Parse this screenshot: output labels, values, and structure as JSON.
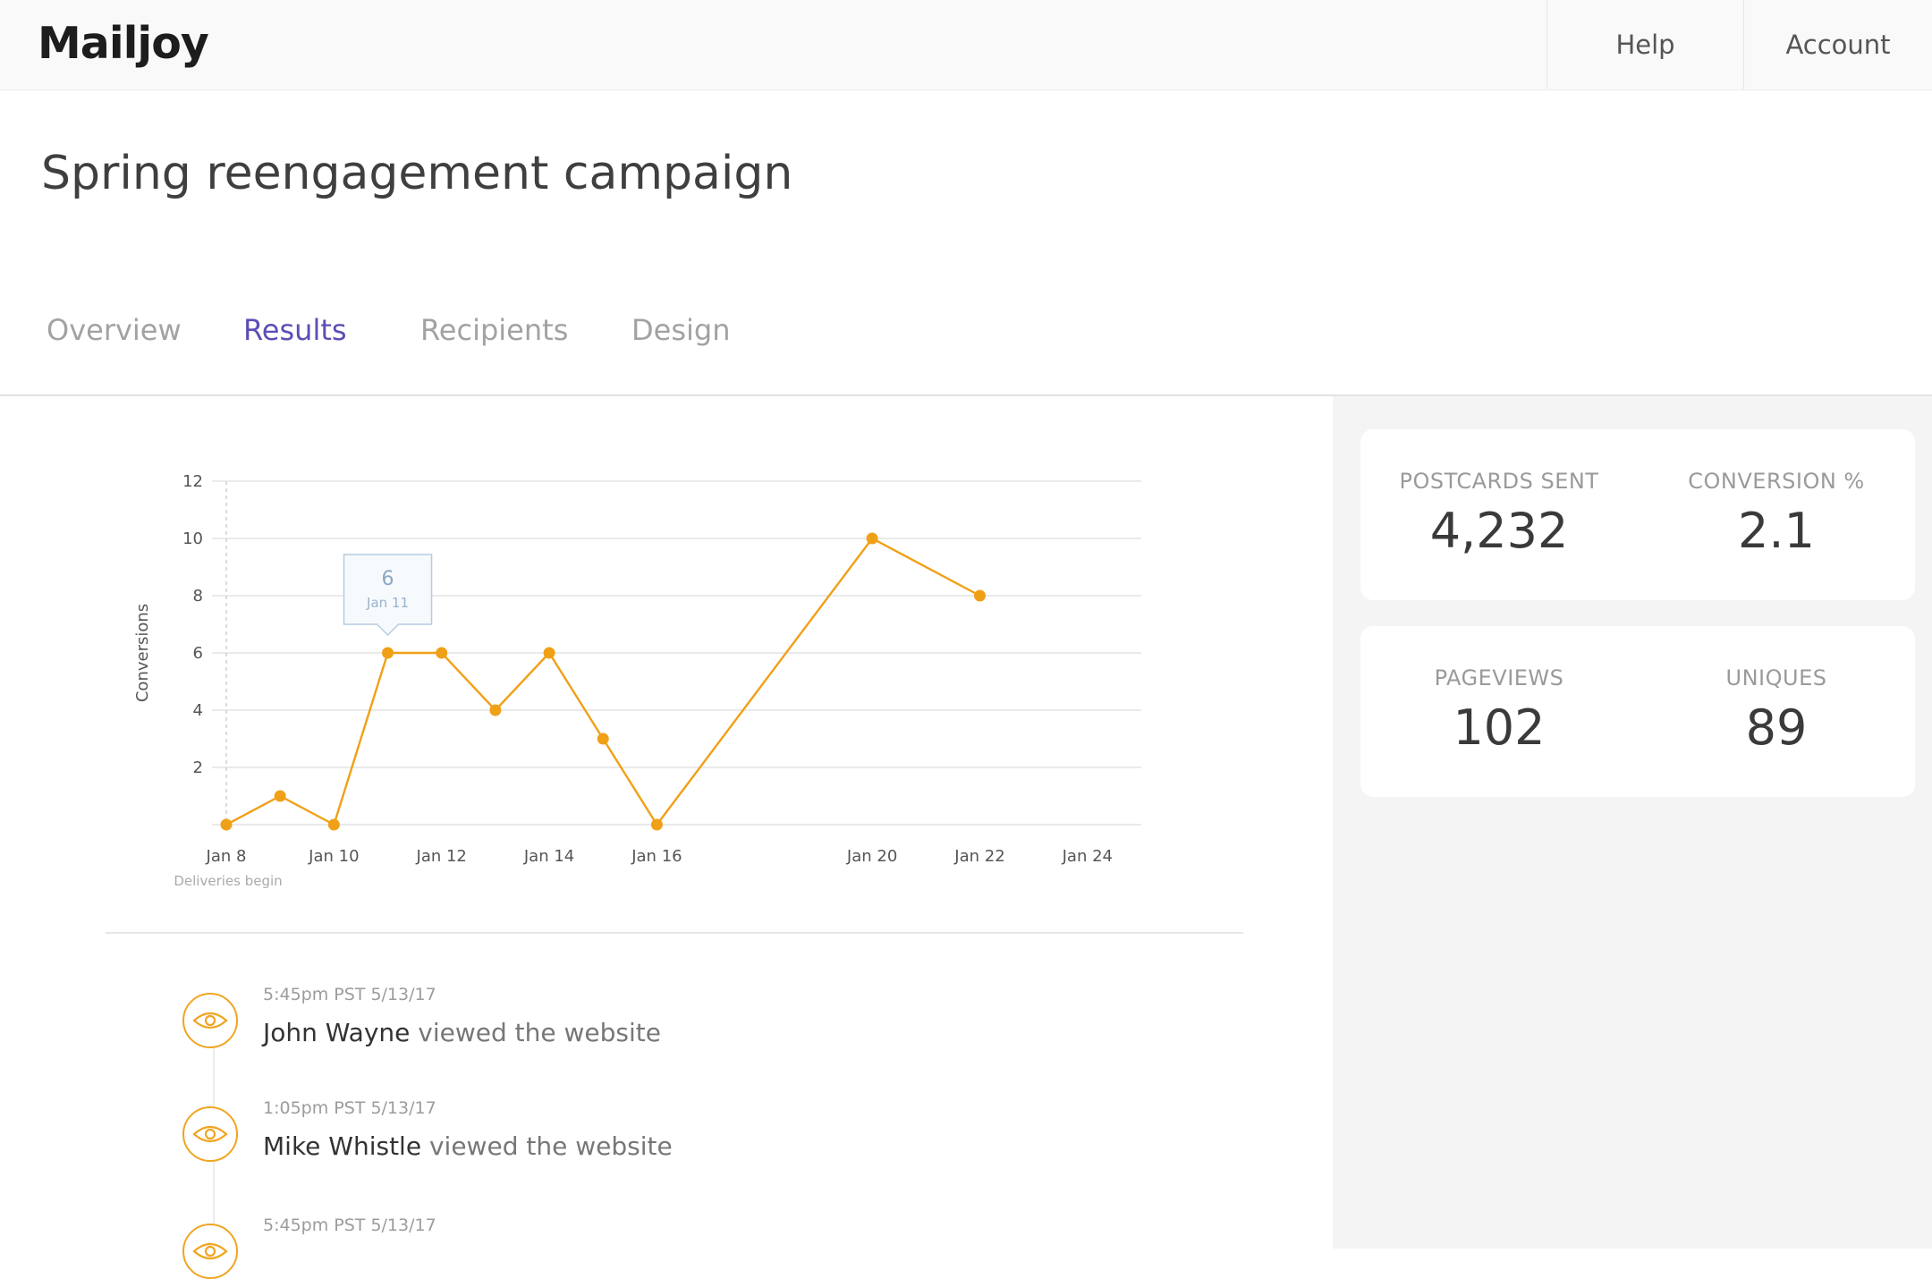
{
  "app": {
    "logo": "Mailjoy"
  },
  "nav": {
    "help": "Help",
    "account": "Account"
  },
  "campaign": {
    "title": "Spring reengagement campaign"
  },
  "tabs": [
    {
      "label": "Overview",
      "active": false
    },
    {
      "label": "Results",
      "active": true
    },
    {
      "label": "Recipients",
      "active": false
    },
    {
      "label": "Design",
      "active": false
    }
  ],
  "stats": {
    "postcards_sent": {
      "label": "POSTCARDS SENT",
      "value": "4,232"
    },
    "conversion": {
      "label": "CONVERSION %",
      "value": "2.1"
    },
    "pageviews": {
      "label": "PAGEVIEWS",
      "value": "102"
    },
    "uniques": {
      "label": "UNIQUES",
      "value": "89"
    }
  },
  "chart_data": {
    "type": "line",
    "ylabel": "Conversions",
    "ylim": [
      0,
      12
    ],
    "yticks": [
      2,
      4,
      6,
      8,
      10,
      12
    ],
    "xlim": [
      8,
      25
    ],
    "xticks": [
      {
        "day": 8,
        "label": "Jan 8"
      },
      {
        "day": 10,
        "label": "Jan 10"
      },
      {
        "day": 12,
        "label": "Jan 12"
      },
      {
        "day": 14,
        "label": "Jan 14"
      },
      {
        "day": 16,
        "label": "Jan 16"
      },
      {
        "day": 20,
        "label": "Jan 20"
      },
      {
        "day": 22,
        "label": "Jan 22"
      },
      {
        "day": 24,
        "label": "Jan 24"
      }
    ],
    "series": [
      {
        "color": "#f0a016",
        "points": [
          {
            "day": 8,
            "value": 0
          },
          {
            "day": 9,
            "value": 1
          },
          {
            "day": 10,
            "value": 0
          },
          {
            "day": 11,
            "value": 6
          },
          {
            "day": 12,
            "value": 6
          },
          {
            "day": 13,
            "value": 4
          },
          {
            "day": 14,
            "value": 6
          },
          {
            "day": 15,
            "value": 3
          },
          {
            "day": 16,
            "value": 0
          },
          {
            "day": 20,
            "value": 10
          },
          {
            "day": 22,
            "value": 8
          }
        ]
      }
    ],
    "annotation": {
      "day": 8,
      "label": "Deliveries begin"
    },
    "tooltip": {
      "day": 11,
      "value": "6",
      "date": "Jan 11"
    },
    "grid": true
  },
  "activity": [
    {
      "time": "5:45pm PST 5/13/17",
      "name": "John Wayne",
      "action": "viewed the website",
      "icon": "eye-icon"
    },
    {
      "time": "1:05pm PST 5/13/17",
      "name": "Mike Whistle",
      "action": "viewed the website",
      "icon": "eye-icon"
    },
    {
      "time": "5:45pm PST 5/13/17",
      "name": "",
      "action": "",
      "icon": "eye-icon"
    }
  ],
  "colors": {
    "accent": "#5a4fb5",
    "chart_line": "#f0a016",
    "icon": "#f0a522"
  }
}
